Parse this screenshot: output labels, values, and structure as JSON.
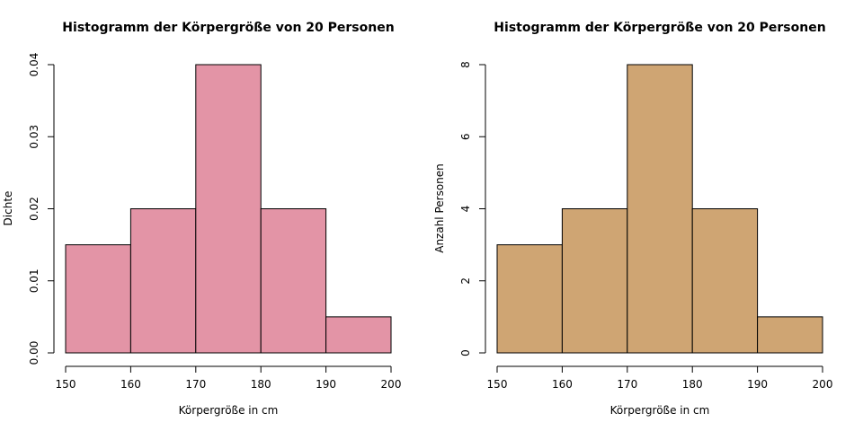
{
  "chart_data": [
    {
      "type": "bar",
      "title": "Histogramm der Körpergröße von 20 Personen",
      "xlabel": "Körpergröße in cm",
      "ylabel": "Dichte",
      "bins": [
        [
          150,
          160
        ],
        [
          160,
          170
        ],
        [
          170,
          180
        ],
        [
          180,
          190
        ],
        [
          190,
          200
        ]
      ],
      "values": [
        0.015,
        0.02,
        0.04,
        0.02,
        0.005
      ],
      "xlim": [
        150,
        200
      ],
      "ylim": [
        0,
        0.04
      ],
      "x_ticks": [
        "150",
        "160",
        "170",
        "180",
        "190",
        "200"
      ],
      "y_ticks": [
        "0.00",
        "0.01",
        "0.02",
        "0.03",
        "0.04"
      ],
      "bar_color": "#e394a6",
      "grid": false
    },
    {
      "type": "bar",
      "title": "Histogramm der Körpergröße von 20 Personen",
      "xlabel": "Körpergröße in cm",
      "ylabel": "Anzahl Personen",
      "bins": [
        [
          150,
          160
        ],
        [
          160,
          170
        ],
        [
          170,
          180
        ],
        [
          180,
          190
        ],
        [
          190,
          200
        ]
      ],
      "values": [
        3,
        4,
        8,
        4,
        1
      ],
      "xlim": [
        150,
        200
      ],
      "ylim": [
        0,
        8
      ],
      "x_ticks": [
        "150",
        "160",
        "170",
        "180",
        "190",
        "200"
      ],
      "y_ticks": [
        "0",
        "2",
        "4",
        "6",
        "8"
      ],
      "bar_color": "#cfa573",
      "grid": false
    }
  ]
}
